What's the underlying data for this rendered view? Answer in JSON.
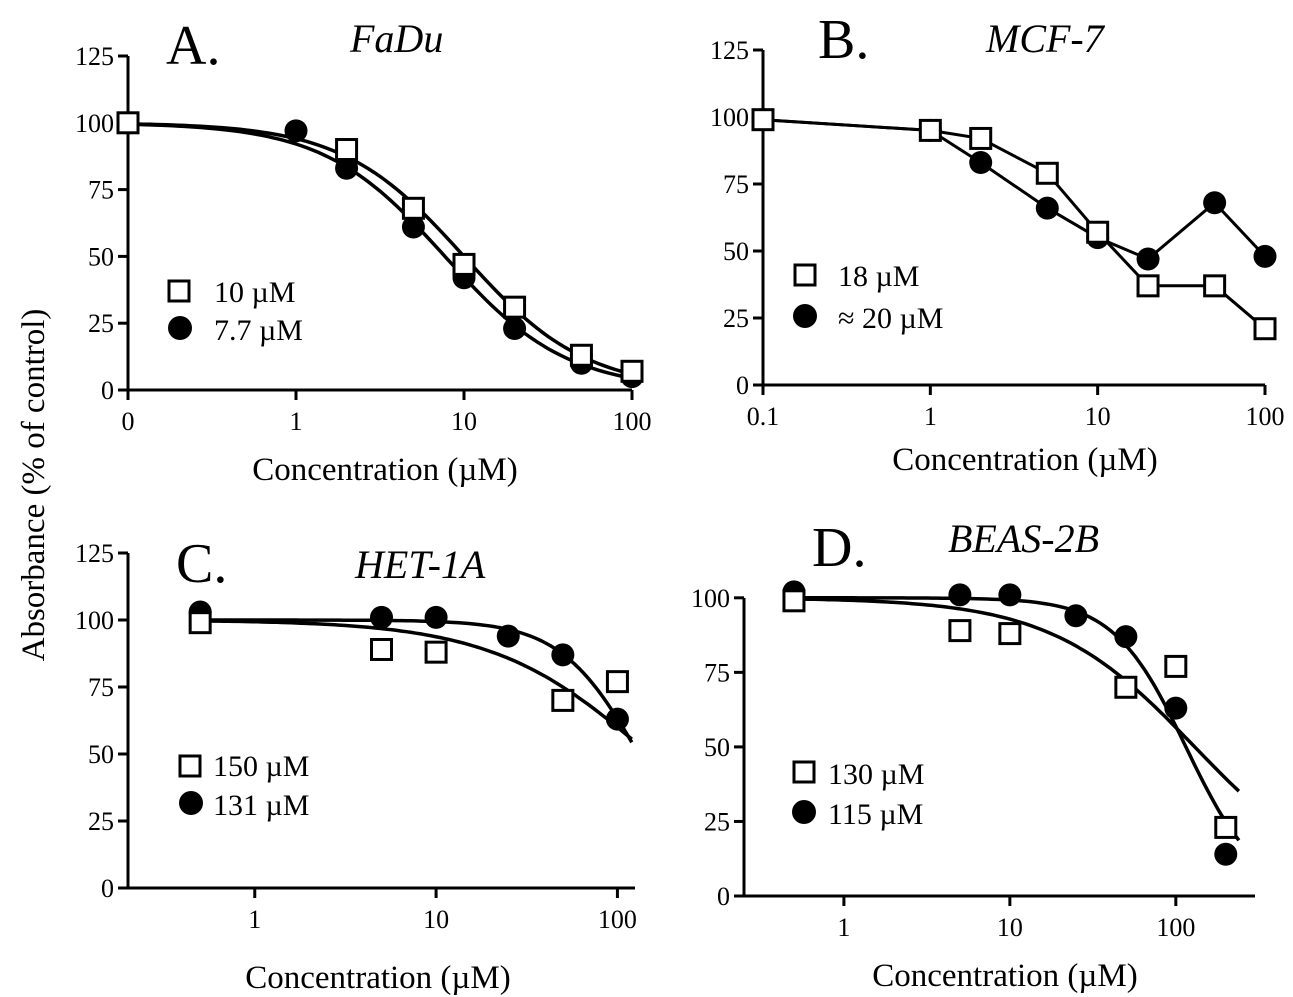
{
  "figure": {
    "shared_ylabel": "Absorbance (% of control)"
  },
  "chart_data": [
    {
      "type": "line",
      "panel": "A.",
      "title": "FaDu",
      "xlabel": "Concentration (µM)",
      "ylabel": "Absorbance (% of control)",
      "x_scale": "log",
      "x_ticks": [
        "0",
        "1",
        "10",
        "100"
      ],
      "y_ticks": [
        "0",
        "25",
        "50",
        "75",
        "100",
        "125"
      ],
      "ylim": [
        0,
        125
      ],
      "series": [
        {
          "name": "10 µM",
          "marker": "open-square",
          "x": [
            0.1,
            2,
            5,
            10,
            20,
            50,
            100
          ],
          "y": [
            100,
            90,
            68,
            47,
            31,
            13,
            7
          ]
        },
        {
          "name": "7.7 µM",
          "marker": "filled-circle",
          "x": [
            0.1,
            1,
            2,
            5,
            10,
            20,
            50,
            100
          ],
          "y": [
            100,
            97,
            83,
            61,
            42,
            23,
            10,
            5
          ]
        }
      ],
      "fit_curves": [
        {
          "marker": "open-square",
          "ic50": 10,
          "hill": 1.2
        },
        {
          "marker": "filled-circle",
          "ic50": 7.7,
          "hill": 1.2
        }
      ],
      "legend": [
        "10 µM",
        "7.7 µM"
      ]
    },
    {
      "type": "line",
      "panel": "B.",
      "title": "MCF-7",
      "xlabel": "Concentration (µM)",
      "x_scale": "log",
      "x_ticks": [
        "0.1",
        "1",
        "10",
        "100"
      ],
      "y_ticks": [
        "0",
        "25",
        "50",
        "75",
        "100",
        "125"
      ],
      "ylim": [
        0,
        125
      ],
      "series": [
        {
          "name": "18 µM",
          "marker": "open-square",
          "x": [
            0.1,
            1,
            2,
            5,
            10,
            20,
            50,
            100
          ],
          "y": [
            99,
            95,
            92,
            79,
            57,
            37,
            37,
            21
          ]
        },
        {
          "name": "≈ 20 µM",
          "marker": "filled-circle",
          "x": [
            0.1,
            1,
            2,
            5,
            10,
            20,
            50,
            100
          ],
          "y": [
            99,
            95,
            83,
            66,
            55,
            47,
            68,
            48
          ]
        }
      ],
      "legend": [
        "18 µM",
        "≈ 20 µM"
      ]
    },
    {
      "type": "line",
      "panel": "C.",
      "title": "HET-1A",
      "xlabel": "Concentration (µM)",
      "x_scale": "log",
      "x_ticks": [
        "1",
        "10",
        "100"
      ],
      "y_ticks": [
        "0",
        "25",
        "50",
        "75",
        "100",
        "125"
      ],
      "ylim": [
        0,
        125
      ],
      "series": [
        {
          "name": "150 µM",
          "marker": "open-square",
          "x": [
            0.5,
            5,
            10,
            50,
            100
          ],
          "y": [
            99,
            89,
            88,
            70,
            77
          ]
        },
        {
          "name": "131 µM",
          "marker": "filled-circle",
          "x": [
            0.5,
            5,
            10,
            25,
            50,
            100
          ],
          "y": [
            103,
            101,
            101,
            94,
            87,
            63
          ]
        }
      ],
      "fit_curves": [
        {
          "marker": "open-square",
          "ic50": 150,
          "hill": 1.0
        },
        {
          "marker": "filled-circle",
          "ic50": 131,
          "hill": 2.0
        }
      ],
      "legend": [
        "150 µM",
        "131 µM"
      ]
    },
    {
      "type": "line",
      "panel": "D.",
      "title": "BEAS-2B",
      "xlabel": "Concentration (µM)",
      "x_scale": "log",
      "x_ticks": [
        "1",
        "10",
        "100"
      ],
      "y_ticks": [
        "0",
        "25",
        "50",
        "75",
        "100"
      ],
      "ylim": [
        0,
        110
      ],
      "series": [
        {
          "name": "130 µM",
          "marker": "open-square",
          "x": [
            0.5,
            5,
            10,
            50,
            100,
            200
          ],
          "y": [
            99,
            89,
            88,
            70,
            77,
            23
          ]
        },
        {
          "name": "115 µM",
          "marker": "filled-circle",
          "x": [
            0.5,
            5,
            10,
            25,
            50,
            100,
            200
          ],
          "y": [
            102,
            101,
            101,
            94,
            87,
            63,
            14
          ]
        }
      ],
      "fit_curves": [
        {
          "marker": "open-square",
          "ic50": 130,
          "hill": 1.0
        },
        {
          "marker": "filled-circle",
          "ic50": 115,
          "hill": 2.0
        }
      ],
      "legend": [
        "130 µM",
        "115 µM"
      ]
    }
  ]
}
